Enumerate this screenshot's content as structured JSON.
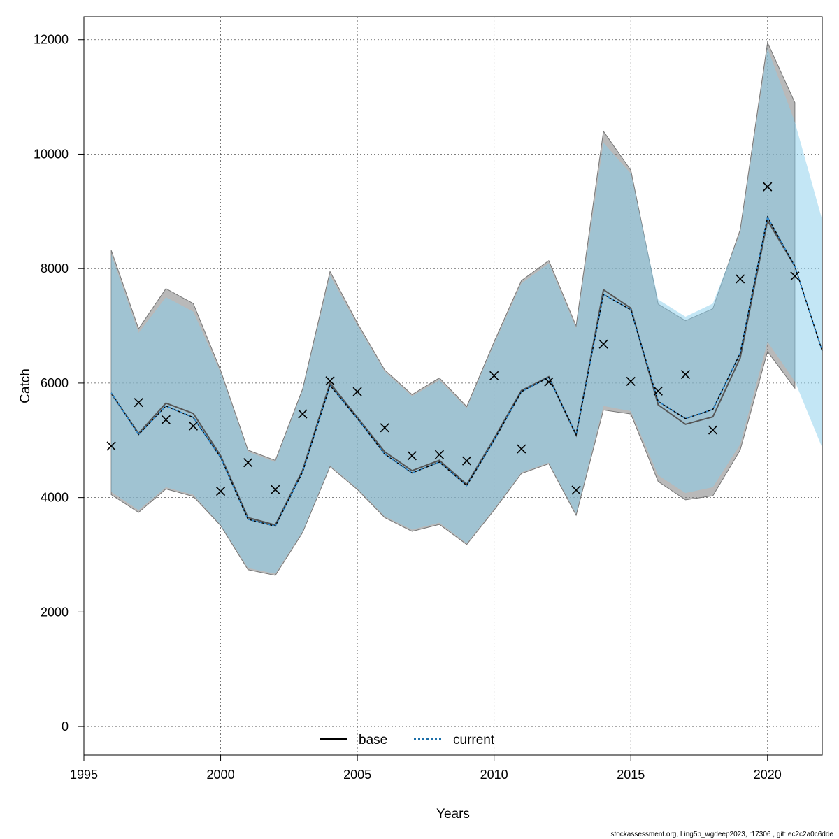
{
  "chart_data": {
    "type": "line",
    "xlabel": "Years",
    "ylabel": "Catch",
    "xlim": [
      1995,
      2022
    ],
    "ylim": [
      -500,
      12400
    ],
    "x_ticks": [
      1995,
      2000,
      2005,
      2010,
      2015,
      2020
    ],
    "y_ticks": [
      0,
      2000,
      4000,
      6000,
      8000,
      10000,
      12000
    ],
    "grid": true,
    "legend_position": "bottom",
    "series": [
      {
        "name": "base",
        "color": "#000000",
        "line_style": "solid",
        "band_color": "#808080",
        "x": [
          1996,
          1997,
          1998,
          1999,
          2000,
          2001,
          2002,
          2003,
          2004,
          2005,
          2006,
          2007,
          2008,
          2009,
          2010,
          2011,
          2012,
          2013,
          2014,
          2015,
          2016,
          2017,
          2018,
          2019,
          2020,
          2021
        ],
        "values": [
          5820,
          5120,
          5650,
          5470,
          4730,
          3650,
          3520,
          4480,
          6000,
          5400,
          4800,
          4470,
          4650,
          4230,
          5030,
          5870,
          6110,
          5090,
          7630,
          7310,
          5620,
          5280,
          5410,
          6440,
          8840,
          8040
        ],
        "lower": [
          4050,
          3740,
          4150,
          4020,
          3510,
          2740,
          2640,
          3390,
          4540,
          4140,
          3650,
          3410,
          3530,
          3180,
          3780,
          4420,
          4590,
          3690,
          5530,
          5460,
          4280,
          3960,
          4030,
          4830,
          6550,
          5910
        ],
        "upper": [
          8320,
          6950,
          7650,
          7390,
          6220,
          4830,
          4650,
          5900,
          7950,
          7050,
          6230,
          5800,
          6090,
          5590,
          6720,
          7790,
          8140,
          7000,
          10400,
          9720,
          7380,
          7090,
          7300,
          8680,
          11950,
          10900
        ]
      },
      {
        "name": "current",
        "color": "#2b6e9e",
        "line_style": "dashed",
        "band_color": "#87ceeb",
        "x": [
          1996,
          1997,
          1998,
          1999,
          2000,
          2001,
          2002,
          2003,
          2004,
          2005,
          2006,
          2007,
          2008,
          2009,
          2010,
          2011,
          2012,
          2013,
          2014,
          2015,
          2016,
          2017,
          2018,
          2019,
          2020,
          2021,
          2022
        ],
        "values": [
          5830,
          5100,
          5600,
          5400,
          4700,
          3620,
          3500,
          4450,
          5960,
          5380,
          4760,
          4430,
          4620,
          4210,
          5000,
          5850,
          6100,
          5100,
          7550,
          7280,
          5680,
          5380,
          5540,
          6520,
          8900,
          8040,
          6560
        ],
        "lower": [
          4100,
          3780,
          4180,
          4050,
          3520,
          2770,
          2670,
          3410,
          4560,
          4160,
          3670,
          3440,
          3560,
          3200,
          3800,
          4440,
          4610,
          3720,
          5600,
          5510,
          4390,
          4080,
          4180,
          4930,
          6720,
          6030,
          4870
        ],
        "upper": [
          8250,
          6880,
          7500,
          7250,
          6180,
          4800,
          4620,
          5870,
          7880,
          7010,
          6200,
          5770,
          6050,
          5560,
          6680,
          7740,
          8090,
          6960,
          10200,
          9660,
          7460,
          7160,
          7390,
          8620,
          11850,
          10560,
          8850
        ]
      }
    ],
    "observed": {
      "marker": "x",
      "x": [
        1996,
        1997,
        1998,
        1999,
        2000,
        2001,
        2002,
        2003,
        2004,
        2005,
        2006,
        2007,
        2008,
        2009,
        2010,
        2011,
        2012,
        2013,
        2014,
        2015,
        2016,
        2017,
        2018,
        2019,
        2020,
        2021
      ],
      "values": [
        4900,
        5660,
        5360,
        5250,
        4110,
        4610,
        4140,
        5460,
        6040,
        5850,
        5220,
        4730,
        4750,
        4640,
        6130,
        4850,
        6020,
        4130,
        6680,
        6030,
        5860,
        6150,
        5180,
        7820,
        9430,
        7870
      ]
    }
  },
  "footer": "stockassessment.org, Ling5b_wgdeep2023, r17306 , git: ec2c2a0c6dde"
}
